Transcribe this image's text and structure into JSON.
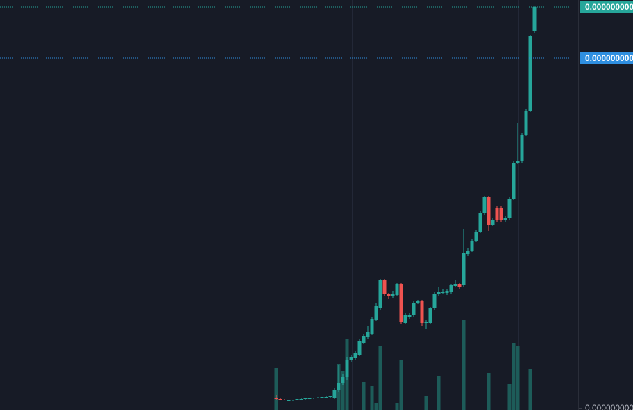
{
  "chart_data": {
    "type": "candlestick",
    "open": [
      9e-12,
      8e-12,
      7.5e-12,
      7e-12,
      7e-12,
      7.5e-12,
      8e-12,
      8e-12,
      8.5e-12,
      8.5e-12,
      9e-12,
      9e-12,
      9.5e-12,
      9.5e-12,
      9e-12,
      1.45e-11,
      1.95e-11,
      2.35e-11,
      3.6e-11,
      3.75e-11,
      4e-11,
      4.85e-11,
      5.25e-11,
      5.5e-11,
      6.5e-11,
      7.35e-11,
      9.35e-11,
      8.35e-11,
      8.2e-11,
      8.3e-11,
      9.1e-11,
      6.3e-11,
      6.7e-11,
      6.85e-11,
      7.75e-11,
      7.85e-11,
      6.25e-11,
      6.3e-11,
      7.35e-11,
      8.35e-11,
      8.45e-11,
      8.45e-11,
      8.5e-11,
      8.95e-11,
      9.1e-11,
      9e-11,
      1.125e-10,
      1.15e-10,
      1.22e-10,
      1.285e-10,
      1.42e-10,
      1.535e-10,
      1.335e-10,
      1.46e-10,
      1.46e-10,
      1.37e-10,
      1.385e-10,
      1.525e-10,
      1.785e-10,
      1.795e-10,
      1.985e-10,
      2.16e-10,
      2.735e-10
    ],
    "high": [
      1.1e-11,
      8.5e-12,
      8e-12,
      7.5e-12,
      7.5e-12,
      8e-12,
      8.5e-12,
      8.5e-12,
      9e-12,
      9e-12,
      9.5e-12,
      9.5e-12,
      1e-11,
      1e-11,
      1.6e-11,
      3.25e-11,
      2.6e-11,
      3.85e-11,
      4e-11,
      4.25e-11,
      5.1e-11,
      5.5e-11,
      6.1e-11,
      6.75e-11,
      7.75e-11,
      9.45e-11,
      9.45e-11,
      8.45e-11,
      8.6e-11,
      9.2e-11,
      9.2e-11,
      7e-11,
      7e-11,
      7.85e-11,
      7.95e-11,
      7.95e-11,
      6.5e-11,
      7.45e-11,
      8.5e-11,
      8.85e-11,
      8.7e-11,
      8.75e-11,
      9.1e-11,
      9.35e-11,
      9.2e-11,
      1.31e-10,
      1.17e-10,
      1.235e-10,
      1.3e-10,
      1.435e-10,
      1.545e-10,
      1.545e-10,
      1.385e-10,
      1.47e-10,
      1.47e-10,
      1.4e-10,
      1.535e-10,
      1.8e-10,
      2.07e-10,
      2e-10,
      2.175e-10,
      2.71e-10,
      2.92e-10
    ],
    "low": [
      7e-12,
      7e-12,
      7e-12,
      6.5e-12,
      6.5e-12,
      7e-12,
      7.5e-12,
      7.5e-12,
      8e-12,
      8e-12,
      8.5e-12,
      8.5e-12,
      9e-12,
      9e-12,
      8e-12,
      1.3e-11,
      1.8e-11,
      2.2e-11,
      3.5e-11,
      3.6e-11,
      3.9e-11,
      4.75e-11,
      5.15e-11,
      5.4e-11,
      6.4e-11,
      7.25e-11,
      8.2e-11,
      8e-11,
      8.1e-11,
      8.2e-11,
      6.2e-11,
      6.2e-11,
      6.55e-11,
      6.75e-11,
      7.65e-11,
      6.1e-11,
      5.85e-11,
      6.2e-11,
      7.25e-11,
      8.25e-11,
      8.35e-11,
      8.3e-11,
      8.4e-11,
      8.85e-11,
      8.7e-11,
      8.9e-11,
      1.11e-10,
      1.14e-10,
      1.21e-10,
      1.275e-10,
      1.41e-10,
      1.295e-10,
      1.325e-10,
      1.36e-10,
      1.36e-10,
      1.36e-10,
      1.375e-10,
      1.515e-10,
      1.775e-10,
      1.785e-10,
      1.975e-10,
      2.15e-10,
      2.725e-10
    ],
    "close": [
      8e-12,
      7.5e-12,
      7e-12,
      7e-12,
      7.5e-12,
      8e-12,
      8e-12,
      8.5e-12,
      8.5e-12,
      9e-12,
      9e-12,
      9.5e-12,
      9.5e-12,
      1e-11,
      1.45e-11,
      1.95e-11,
      2.35e-11,
      3.6e-11,
      3.85e-11,
      4.1e-11,
      4.95e-11,
      5.35e-11,
      5.6e-11,
      6.6e-11,
      7.5e-11,
      9.35e-11,
      8.35e-11,
      8.2e-11,
      8.35e-11,
      9.1e-11,
      6.35e-11,
      6.85e-11,
      6.85e-11,
      7.75e-11,
      7.85e-11,
      6.25e-11,
      6.35e-11,
      7.35e-11,
      8.35e-11,
      8.5e-11,
      8.5e-11,
      8.6e-11,
      9e-11,
      9.1e-11,
      8.85e-11,
      1.135e-10,
      1.15e-10,
      1.22e-10,
      1.285e-10,
      1.42e-10,
      1.535e-10,
      1.335e-10,
      1.37e-10,
      1.37e-10,
      1.37e-10,
      1.385e-10,
      1.525e-10,
      1.785e-10,
      1.8e-10,
      1.985e-10,
      2.16e-10,
      2.7e-10,
      2.91e-10
    ],
    "volume": [
      60,
      null,
      null,
      null,
      null,
      null,
      null,
      null,
      null,
      null,
      null,
      null,
      null,
      null,
      null,
      67,
      57,
      102,
      null,
      null,
      null,
      40,
      null,
      34,
      10,
      92,
      null,
      null,
      null,
      10,
      72,
      null,
      null,
      null,
      null,
      null,
      20,
      null,
      null,
      49,
      null,
      null,
      null,
      null,
      null,
      130,
      null,
      null,
      null,
      null,
      null,
      54,
      null,
      null,
      null,
      null,
      37,
      97,
      92,
      null,
      null,
      59,
      null
    ],
    "up_color": "#26a69a",
    "down_color": "#ef5350",
    "volume_color": "#1d5c59",
    "ylim": [
      0,
      2.96e-10
    ],
    "yticks": [
      {
        "value": 1e-12,
        "label": "0.000000000"
      }
    ],
    "price_tags": [
      {
        "value": 2.91e-10,
        "label": "0.000000000",
        "color": "#26a69a"
      },
      {
        "value": 2.54e-10,
        "label": "0.000000000",
        "color": "#2f8fe0"
      }
    ]
  }
}
